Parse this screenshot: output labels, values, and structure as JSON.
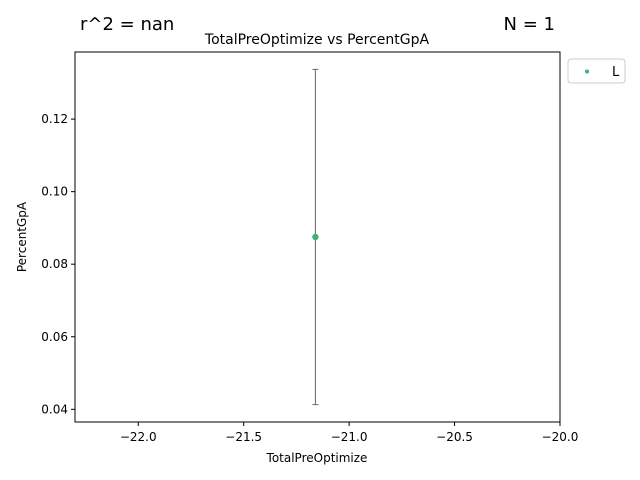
{
  "annotations": {
    "r2": "r^2 = nan",
    "n": "N = 1"
  },
  "chart_data": {
    "type": "scatter",
    "title": "TotalPreOptimize vs PercentGpA",
    "xlabel": "TotalPreOptimize",
    "ylabel": "PercentGpA",
    "xlim": [
      -22.3,
      -20.0
    ],
    "ylim": [
      0.0365,
      0.1385
    ],
    "x_ticks": [
      -22.0,
      -21.5,
      -21.0,
      -20.5,
      -20.0
    ],
    "x_tick_labels": [
      "−22.0",
      "−21.5",
      "−21.0",
      "−20.5",
      "−20.0"
    ],
    "y_ticks": [
      0.04,
      0.06,
      0.08,
      0.1,
      0.12
    ],
    "y_tick_labels": [
      "0.04",
      "0.06",
      "0.08",
      "0.10",
      "0.12"
    ],
    "grid": false,
    "legend_position": "outside-top-right",
    "series": [
      {
        "name": "L",
        "color": "#3cb371",
        "points": [
          {
            "x": -21.16,
            "y": 0.0875,
            "y_err_low": 0.0413,
            "y_err_high": 0.1337
          }
        ]
      }
    ],
    "errorbar_color": "#666666"
  }
}
